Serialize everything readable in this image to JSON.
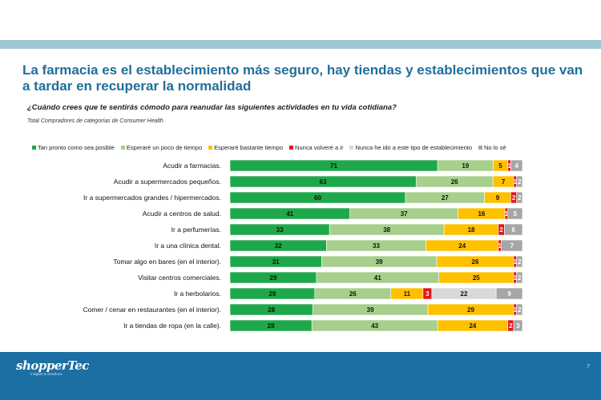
{
  "title": "La farmacia es el establecimiento más seguro, hay tiendas y establecimientos que van a tardar en recuperar la normalidad",
  "question": "¿Cuándo crees que te sentirás cómodo para reanudar las siguientes actividades en tu vida cotidiana?",
  "base": "Total Compradores de categorías de Consumer Health",
  "footer": {
    "logo": "shopperTec",
    "logo_sub": "Insights & Solutions",
    "page": "7"
  },
  "chart_data": {
    "type": "bar",
    "orientation": "horizontal",
    "stacked": true,
    "legend_position": "top",
    "categories": [
      "Acudir a farmacias.",
      "Acudir a supermercados pequeños.",
      "Ir a supermercados grandes / hipermercados.",
      "Acudir a centros de salud.",
      "Ir a perfumerías.",
      "Ir a una clínica dental.",
      "Tomar algo en bares (en el interior).",
      "Visitar centros comerciales.",
      "Ir a herbolarios.",
      "Comer / cenar en restaurantes (en el interior).",
      "Ir a tiendas de ropa (en la calle)."
    ],
    "series": [
      {
        "name": "Tan pronto como sea posible",
        "color": "#1fa84a",
        "values": [
          71,
          63,
          60,
          41,
          33,
          32,
          31,
          29,
          29,
          28,
          28
        ]
      },
      {
        "name": "Esperaré un poco de tiempo",
        "color": "#a6d08c",
        "values": [
          19,
          26,
          27,
          37,
          38,
          33,
          39,
          41,
          26,
          39,
          43
        ]
      },
      {
        "name": "Esperaré bastante tiempo",
        "color": "#ffc000",
        "values": [
          5,
          7,
          9,
          16,
          18,
          24,
          26,
          25,
          11,
          29,
          24
        ]
      },
      {
        "name": "Nunca volveré a ir",
        "color": "#e3151a",
        "values": [
          1,
          1,
          2,
          1,
          2,
          1,
          1,
          1,
          3,
          1,
          2
        ]
      },
      {
        "name": "Nunca he ido a este tipo de establecimiento",
        "color": "#d9d9d9",
        "values": [
          0,
          0,
          0,
          0,
          0,
          0,
          0,
          0,
          22,
          0,
          0
        ]
      },
      {
        "name": "No lo sé",
        "color": "#a6a6a6",
        "values": [
          4,
          2,
          2,
          5,
          6,
          7,
          2,
          2,
          9,
          2,
          3
        ]
      }
    ]
  }
}
